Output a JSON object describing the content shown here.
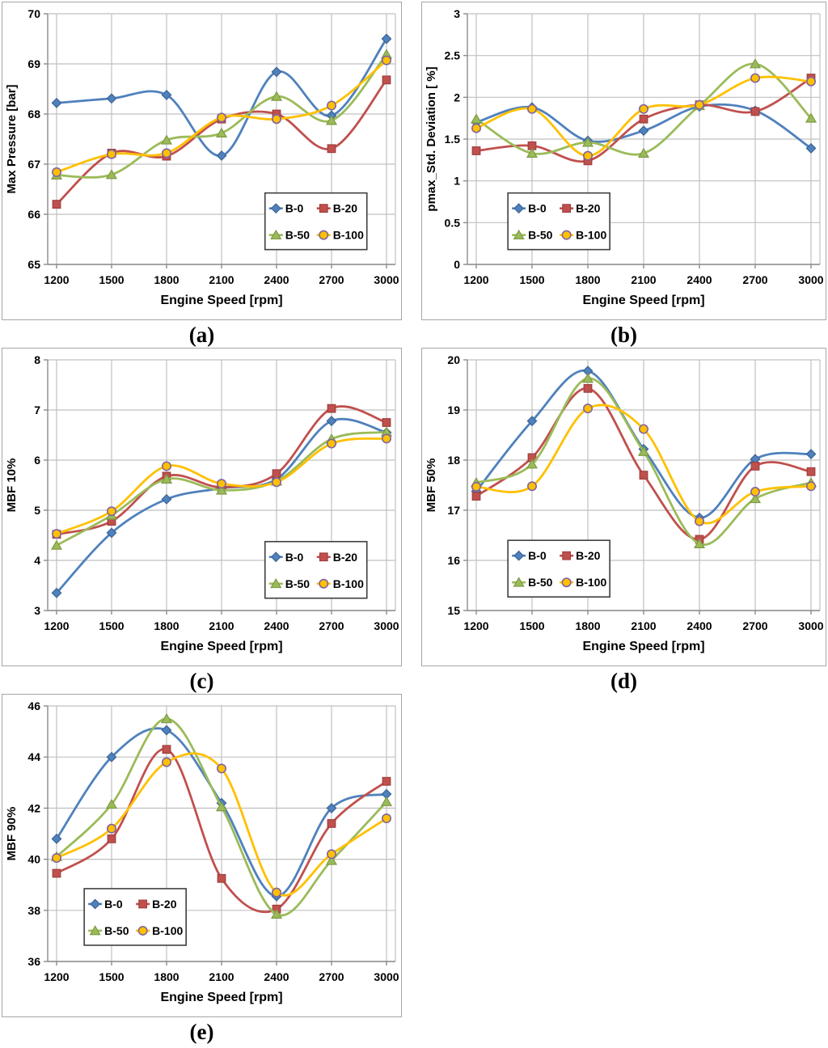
{
  "palette": {
    "grid": "#c0c0c0",
    "axis": "#8c8c8c",
    "panel_border": "#a6a6a6",
    "legend_border": "#3f3f3f",
    "text": "#000000"
  },
  "legend_labels": [
    "B-0",
    "B-20",
    "B-50",
    "B-100"
  ],
  "chart_data": [
    {
      "id": "a",
      "type": "line",
      "caption": "(a)",
      "xlabel": "Engine Speed [rpm]",
      "ylabel": "Max Pressure [bar]",
      "x": [
        1200,
        1500,
        1800,
        2100,
        2400,
        2700,
        3000
      ],
      "ylim": [
        65,
        70
      ],
      "ystep": 1,
      "ydecimals": 0,
      "grid": true,
      "legend_pos": {
        "x": 0.625,
        "y": 0.715
      },
      "series": [
        {
          "name": "B-0",
          "color": "#4F81BD",
          "marker": "diamond",
          "marker_stroke": "#3c6494",
          "values": [
            68.22,
            68.31,
            68.38,
            67.17,
            68.84,
            67.97,
            69.5
          ]
        },
        {
          "name": "B-20",
          "color": "#C0504D",
          "marker": "square",
          "marker_stroke": "#9e3f3d",
          "values": [
            66.2,
            67.22,
            67.16,
            67.9,
            68.0,
            67.31,
            68.68
          ]
        },
        {
          "name": "B-50",
          "color": "#9BBB59",
          "marker": "triangle",
          "marker_stroke": "#7e9a44",
          "values": [
            66.78,
            66.79,
            67.48,
            67.62,
            68.35,
            67.87,
            69.19
          ]
        },
        {
          "name": "B-100",
          "color": "#FFC000",
          "marker": "circle",
          "marker_stroke": "#8064A2",
          "values": [
            66.84,
            67.2,
            67.22,
            67.93,
            67.9,
            68.17,
            69.07
          ]
        }
      ]
    },
    {
      "id": "b",
      "type": "line",
      "caption": "(b)",
      "xlabel": "Engine Speed [rpm]",
      "ylabel": "pmax_Std. Deviation [ %]",
      "x": [
        1200,
        1500,
        1800,
        2100,
        2400,
        2700,
        3000
      ],
      "ylim": [
        0,
        3
      ],
      "ystep": 0.5,
      "ydecimals": 1,
      "grid": true,
      "legend_pos": {
        "x": 0.115,
        "y": 0.715
      },
      "series": [
        {
          "name": "B-0",
          "color": "#4F81BD",
          "marker": "diamond",
          "marker_stroke": "#3c6494",
          "values": [
            1.7,
            1.88,
            1.48,
            1.6,
            1.89,
            1.84,
            1.39
          ]
        },
        {
          "name": "B-20",
          "color": "#C0504D",
          "marker": "square",
          "marker_stroke": "#9e3f3d",
          "values": [
            1.36,
            1.42,
            1.24,
            1.74,
            1.91,
            1.83,
            2.23
          ]
        },
        {
          "name": "B-50",
          "color": "#9BBB59",
          "marker": "triangle",
          "marker_stroke": "#7e9a44",
          "values": [
            1.74,
            1.33,
            1.46,
            1.33,
            1.9,
            2.4,
            1.75
          ]
        },
        {
          "name": "B-100",
          "color": "#FFC000",
          "marker": "circle",
          "marker_stroke": "#8064A2",
          "values": [
            1.63,
            1.86,
            1.3,
            1.86,
            1.91,
            2.23,
            2.19
          ]
        }
      ]
    },
    {
      "id": "c",
      "type": "line",
      "caption": "(c)",
      "xlabel": "Engine Speed [rpm]",
      "ylabel": "MBF 10%",
      "x": [
        1200,
        1500,
        1800,
        2100,
        2400,
        2700,
        3000
      ],
      "ylim": [
        3,
        8
      ],
      "ystep": 1,
      "ydecimals": 0,
      "grid": true,
      "legend_pos": {
        "x": 0.625,
        "y": 0.725
      },
      "series": [
        {
          "name": "B-0",
          "color": "#4F81BD",
          "marker": "diamond",
          "marker_stroke": "#3c6494",
          "values": [
            3.35,
            4.55,
            5.22,
            5.44,
            5.62,
            6.78,
            6.55
          ]
        },
        {
          "name": "B-20",
          "color": "#C0504D",
          "marker": "square",
          "marker_stroke": "#9e3f3d",
          "values": [
            4.52,
            4.78,
            5.68,
            5.46,
            5.73,
            7.03,
            6.75
          ]
        },
        {
          "name": "B-50",
          "color": "#9BBB59",
          "marker": "triangle",
          "marker_stroke": "#7e9a44",
          "values": [
            4.3,
            4.9,
            5.62,
            5.4,
            5.58,
            6.42,
            6.56
          ]
        },
        {
          "name": "B-100",
          "color": "#FFC000",
          "marker": "circle",
          "marker_stroke": "#8064A2",
          "values": [
            4.53,
            4.98,
            5.88,
            5.53,
            5.56,
            6.33,
            6.43
          ]
        }
      ]
    },
    {
      "id": "d",
      "type": "line",
      "caption": "(d)",
      "xlabel": "Engine Speed [rpm]",
      "ylabel": "MBF 50%",
      "x": [
        1200,
        1500,
        1800,
        2100,
        2400,
        2700,
        3000
      ],
      "ylim": [
        15,
        20
      ],
      "ystep": 1,
      "ydecimals": 0,
      "grid": true,
      "legend_pos": {
        "x": 0.115,
        "y": 0.72
      },
      "series": [
        {
          "name": "B-0",
          "color": "#4F81BD",
          "marker": "diamond",
          "marker_stroke": "#3c6494",
          "values": [
            17.38,
            18.78,
            19.78,
            18.22,
            16.85,
            18.02,
            18.12
          ]
        },
        {
          "name": "B-20",
          "color": "#C0504D",
          "marker": "square",
          "marker_stroke": "#9e3f3d",
          "values": [
            17.28,
            18.05,
            19.43,
            17.7,
            16.42,
            17.88,
            17.77
          ]
        },
        {
          "name": "B-50",
          "color": "#9BBB59",
          "marker": "triangle",
          "marker_stroke": "#7e9a44",
          "values": [
            17.55,
            17.92,
            19.63,
            18.17,
            16.33,
            17.23,
            17.55
          ]
        },
        {
          "name": "B-100",
          "color": "#FFC000",
          "marker": "circle",
          "marker_stroke": "#8064A2",
          "values": [
            17.47,
            17.48,
            19.03,
            18.62,
            16.78,
            17.37,
            17.48
          ]
        }
      ]
    },
    {
      "id": "e",
      "type": "line",
      "caption": "(e)",
      "xlabel": "Engine Speed [rpm]",
      "ylabel": "MBF 90%",
      "x": [
        1200,
        1500,
        1800,
        2100,
        2400,
        2700,
        3000
      ],
      "ylim": [
        36,
        46
      ],
      "ystep": 2,
      "ydecimals": 0,
      "grid": true,
      "legend_pos": {
        "x": 0.105,
        "y": 0.715
      },
      "series": [
        {
          "name": "B-0",
          "color": "#4F81BD",
          "marker": "diamond",
          "marker_stroke": "#3c6494",
          "values": [
            40.8,
            44.0,
            45.05,
            42.2,
            38.55,
            42.0,
            42.55
          ]
        },
        {
          "name": "B-20",
          "color": "#C0504D",
          "marker": "square",
          "marker_stroke": "#9e3f3d",
          "values": [
            39.45,
            40.8,
            44.3,
            39.25,
            38.05,
            41.4,
            43.05
          ]
        },
        {
          "name": "B-50",
          "color": "#9BBB59",
          "marker": "triangle",
          "marker_stroke": "#7e9a44",
          "values": [
            40.1,
            42.15,
            45.5,
            42.05,
            37.85,
            39.95,
            42.25
          ]
        },
        {
          "name": "B-100",
          "color": "#FFC000",
          "marker": "circle",
          "marker_stroke": "#8064A2",
          "values": [
            40.05,
            41.2,
            43.8,
            43.55,
            38.7,
            40.2,
            41.6
          ]
        }
      ]
    }
  ]
}
